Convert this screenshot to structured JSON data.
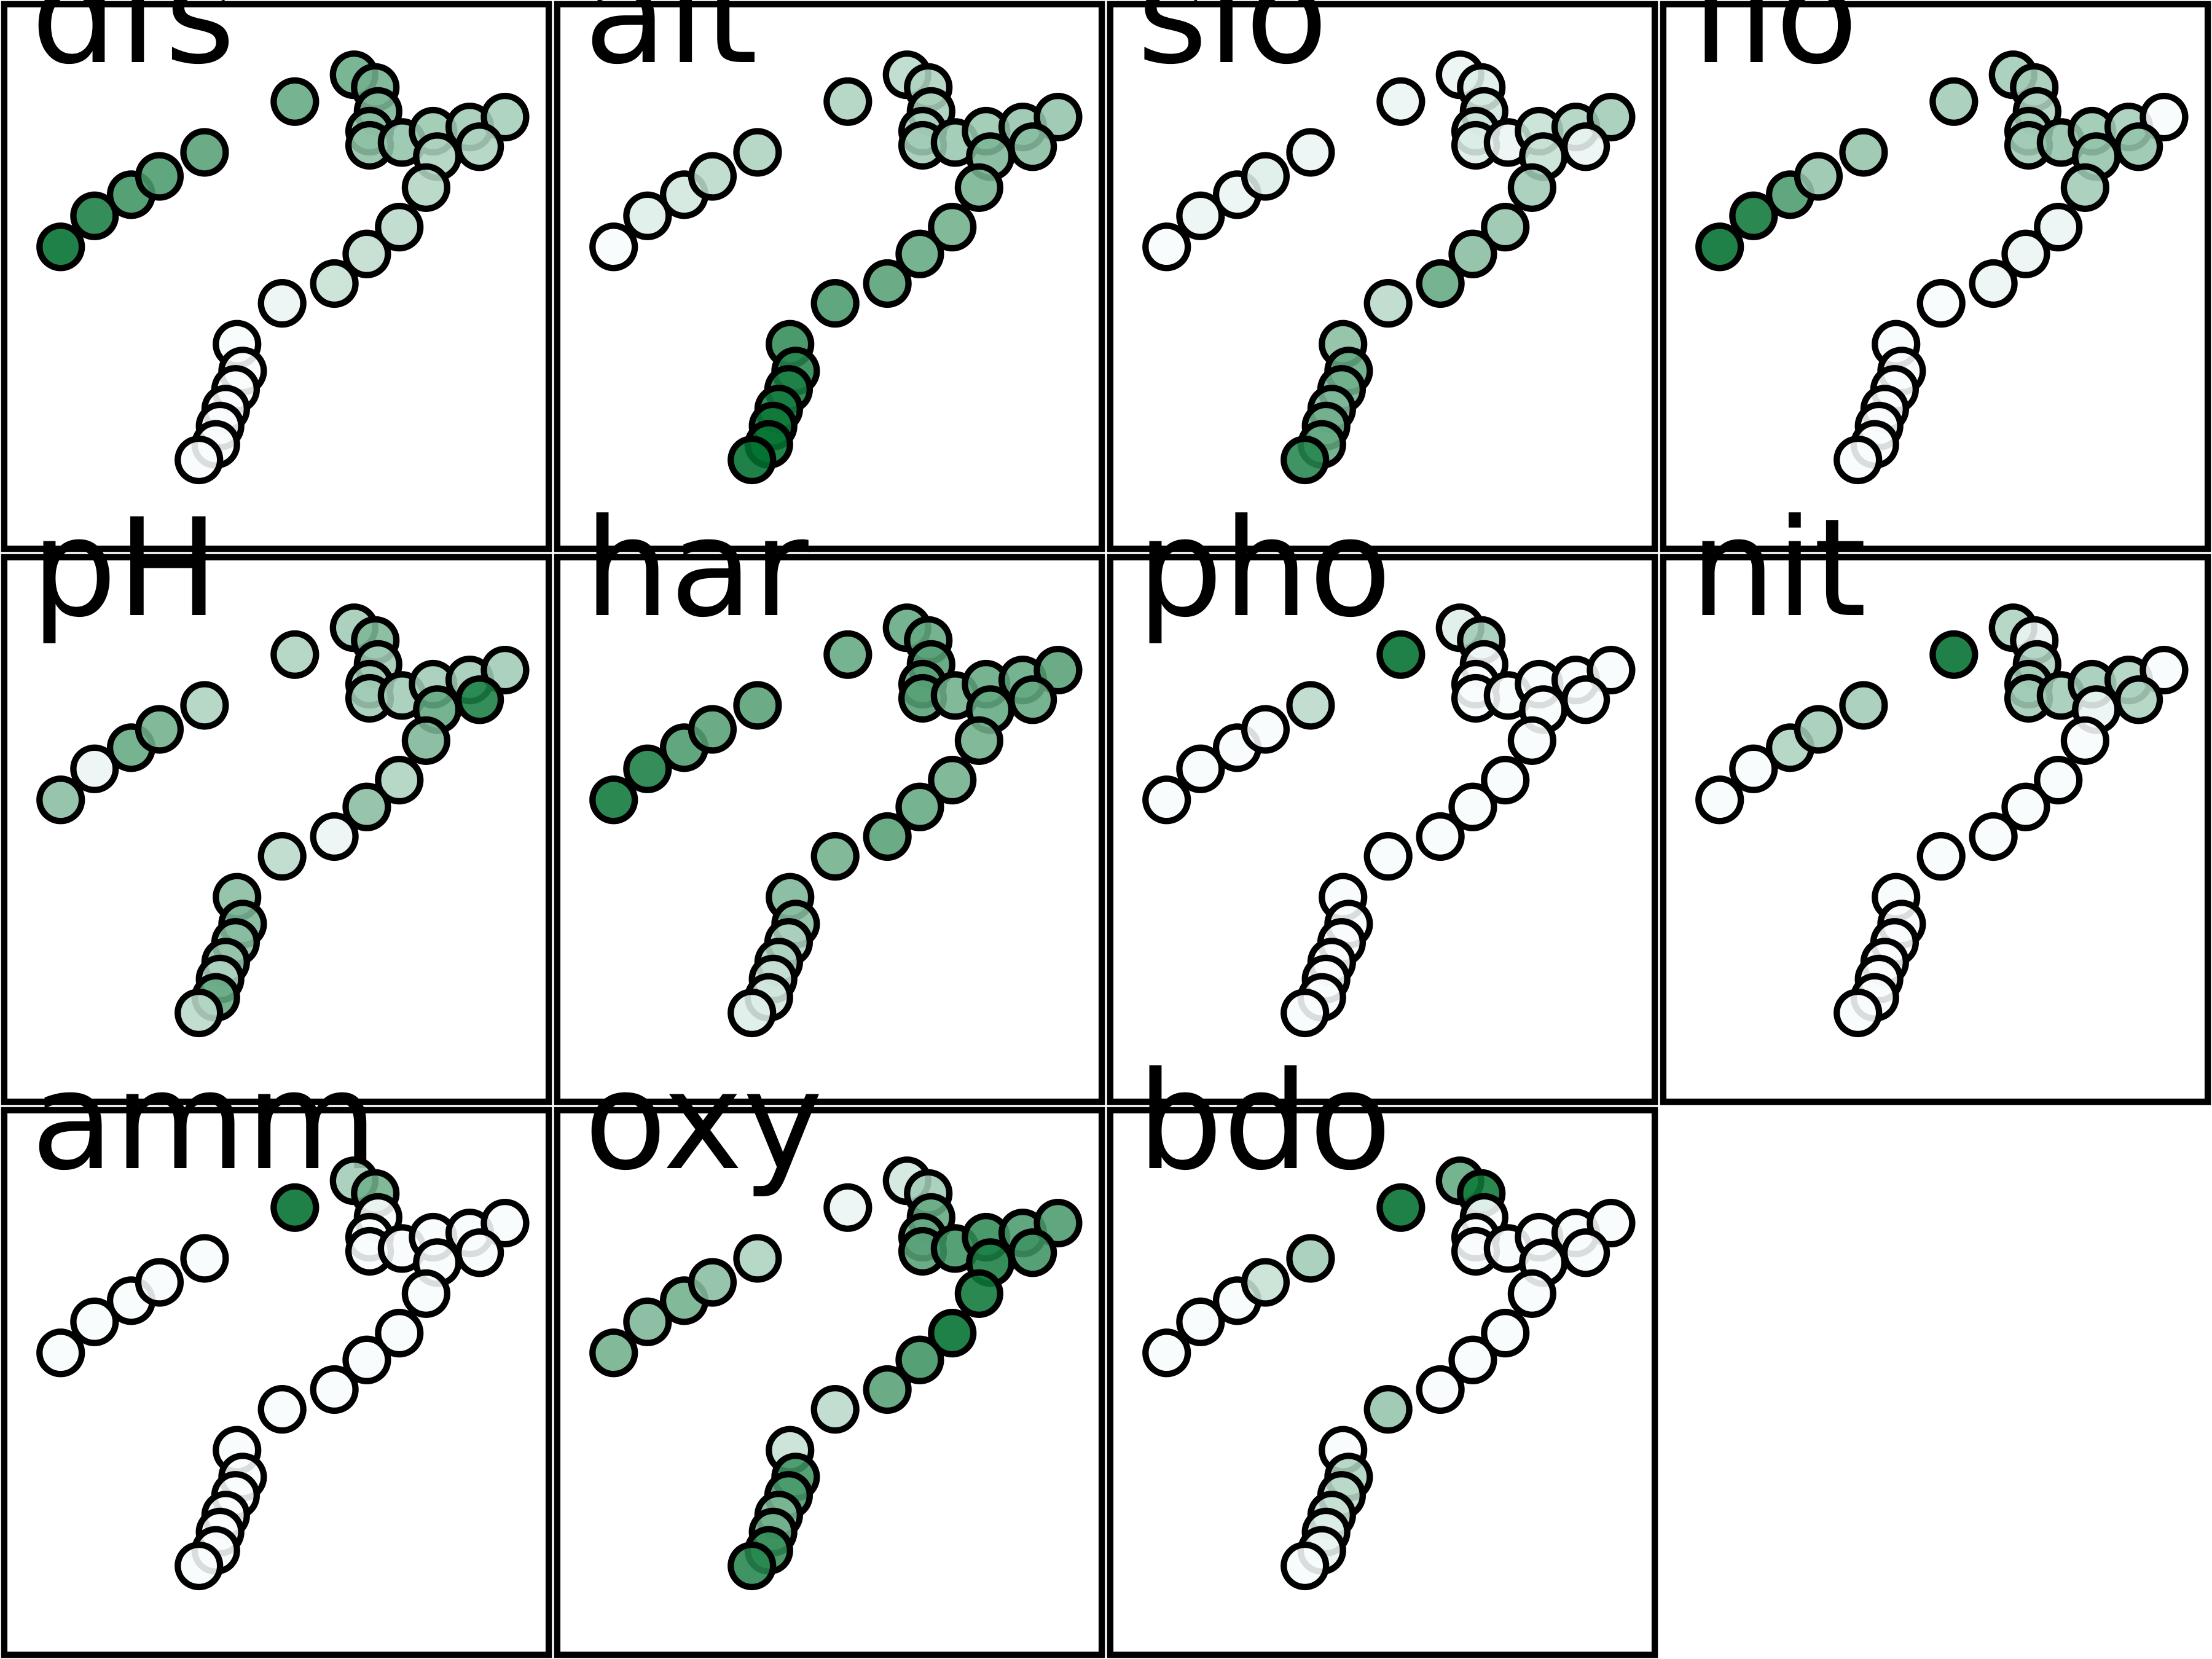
{
  "chart_data": {
    "type": "scatter",
    "panel_titles": [
      "dfs",
      "alt",
      "slo",
      "flo",
      "pH",
      "har",
      "pho",
      "nit",
      "amm",
      "oxy",
      "bdo"
    ],
    "colors": {
      "low": "#f7fcfd",
      "high": "#00702e",
      "outline": "#000000"
    },
    "sites": [
      [
        43,
        175
      ],
      [
        67,
        153
      ],
      [
        93,
        138
      ],
      [
        113,
        125
      ],
      [
        145,
        108
      ],
      [
        209,
        72
      ],
      [
        251,
        53
      ],
      [
        266,
        62
      ],
      [
        268,
        79
      ],
      [
        262,
        93
      ],
      [
        262,
        103
      ],
      [
        285,
        101
      ],
      [
        307,
        93
      ],
      [
        333,
        90
      ],
      [
        358,
        83
      ],
      [
        340,
        104
      ],
      [
        310,
        111
      ],
      [
        302,
        133
      ],
      [
        283,
        161
      ],
      [
        260,
        180
      ],
      [
        237,
        201
      ],
      [
        200,
        215
      ],
      [
        168,
        244
      ],
      [
        172,
        263
      ],
      [
        167,
        276
      ],
      [
        160,
        290
      ],
      [
        156,
        302
      ],
      [
        153,
        315
      ],
      [
        141,
        326
      ]
    ],
    "series": [
      {
        "name": "dfs",
        "values": [
          1,
          0.9,
          0.75,
          0.7,
          0.65,
          0.6,
          0.58,
          0.54,
          0.5,
          0.45,
          0.43,
          0.41,
          0.38,
          0.35,
          0.33,
          0.3,
          0.3,
          0.28,
          0.25,
          0.22,
          0.2,
          0.05,
          0,
          0,
          0,
          0,
          0,
          0,
          0
        ]
      },
      {
        "name": "alt",
        "values": [
          0,
          0.1,
          0.15,
          0.25,
          0.3,
          0.3,
          0.25,
          0.3,
          0.32,
          0.33,
          0.35,
          0.38,
          0.38,
          0.4,
          0.4,
          0.45,
          0.5,
          0.52,
          0.55,
          0.6,
          0.65,
          0.7,
          0.8,
          0.85,
          0.9,
          0.92,
          0.95,
          0.98,
          1
        ]
      },
      {
        "name": "slo",
        "values": [
          0,
          0.05,
          0.05,
          0.1,
          0.05,
          0.05,
          0.05,
          0.1,
          0.15,
          0.2,
          0.1,
          0.05,
          0.2,
          0.3,
          0.35,
          0.05,
          0.2,
          0.35,
          0.4,
          0.45,
          0.6,
          0.25,
          0.45,
          0.6,
          0.55,
          0.5,
          0.55,
          0.6,
          0.85
        ]
      },
      {
        "name": "flo",
        "values": [
          1,
          0.95,
          0.7,
          0.4,
          0.4,
          0.35,
          0.35,
          0.35,
          0.3,
          0.35,
          0.35,
          0.4,
          0.38,
          0.33,
          0,
          0.4,
          0.4,
          0.35,
          0.05,
          0.05,
          0.05,
          0,
          0,
          0,
          0,
          0,
          0,
          0,
          0
        ]
      },
      {
        "name": "pH",
        "values": [
          0.45,
          0.05,
          0.6,
          0.55,
          0.3,
          0.3,
          0.35,
          0.5,
          0.35,
          0.35,
          0.35,
          0.35,
          0.35,
          0.35,
          0.35,
          0.9,
          0.6,
          0.5,
          0.3,
          0.45,
          0.05,
          0.25,
          0.45,
          0.5,
          0.45,
          0.4,
          0.3,
          0.6,
          0.25
        ]
      },
      {
        "name": "har",
        "values": [
          0.95,
          0.9,
          0.7,
          0.65,
          0.65,
          0.6,
          0.6,
          0.6,
          0.65,
          0.65,
          0.65,
          0.55,
          0.6,
          0.6,
          0.65,
          0.6,
          0.6,
          0.55,
          0.55,
          0.6,
          0.65,
          0.55,
          0.5,
          0.45,
          0.3,
          0.3,
          0.2,
          0.15,
          0.1
        ]
      },
      {
        "name": "pho",
        "values": [
          0,
          0,
          0,
          0,
          0.25,
          1,
          0.1,
          0.35,
          0,
          0,
          0,
          0,
          0,
          0,
          0,
          0,
          0,
          0,
          0,
          0,
          0,
          0,
          0,
          0,
          0,
          0,
          0,
          0,
          0
        ]
      },
      {
        "name": "nit",
        "values": [
          0,
          0,
          0.3,
          0.35,
          0.35,
          1,
          0.3,
          0.05,
          0.3,
          0.35,
          0.35,
          0.35,
          0.35,
          0.3,
          0,
          0.3,
          0.05,
          0,
          0,
          0,
          0,
          0,
          0,
          0,
          0,
          0,
          0,
          0,
          0
        ]
      },
      {
        "name": "amm",
        "values": [
          0,
          0,
          0,
          0,
          0,
          1,
          0.35,
          0.55,
          0,
          0,
          0,
          0,
          0,
          0,
          0,
          0,
          0,
          0,
          0,
          0,
          0,
          0,
          0,
          0,
          0,
          0,
          0,
          0,
          0
        ]
      },
      {
        "name": "oxy",
        "values": [
          0.55,
          0.5,
          0.55,
          0.45,
          0.3,
          0.05,
          0.15,
          0.35,
          0.6,
          0.6,
          0.65,
          0.75,
          0.8,
          0.7,
          0.7,
          0.75,
          0.9,
          0.95,
          1,
          0.75,
          0.65,
          0.25,
          0.2,
          0.75,
          0.7,
          0.5,
          0.55,
          0.8,
          0.85
        ]
      },
      {
        "name": "bdo",
        "values": [
          0,
          0,
          0,
          0.2,
          0.35,
          1,
          0.6,
          0.95,
          0,
          0,
          0,
          0,
          0,
          0,
          0,
          0,
          0,
          0,
          0,
          0,
          0,
          0.4,
          0,
          0.3,
          0.25,
          0.2,
          0.1,
          0.05,
          0
        ]
      }
    ]
  }
}
